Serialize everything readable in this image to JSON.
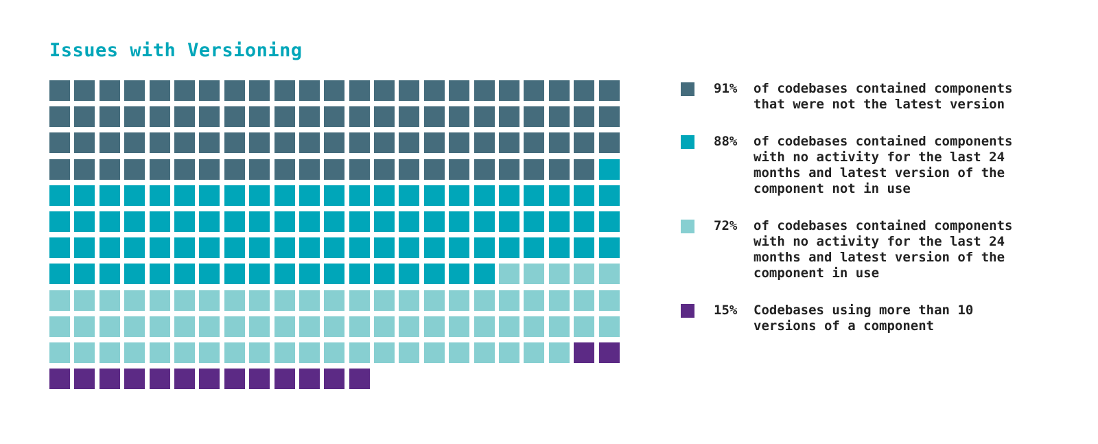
{
  "chart_data": {
    "type": "waffle",
    "title": "Issues with Versioning",
    "columns": 23,
    "cell_counts": [
      91,
      88,
      72,
      15
    ],
    "series": [
      {
        "name": "91%",
        "value": 91,
        "color": "#456c7c",
        "lines": [
          "of codebases contained components",
          "that were not the latest version"
        ]
      },
      {
        "name": "88%",
        "value": 88,
        "color": "#00a6b9",
        "lines": [
          "of codebases contained components",
          "with no activity for the last 24",
          "months and latest version of the",
          "component not in use"
        ]
      },
      {
        "name": "72%",
        "value": 72,
        "color": "#87cfd1",
        "lines": [
          "of codebases contained components",
          "with no activity for the last 24",
          "months and latest version of the",
          "component in use"
        ]
      },
      {
        "name": "15%",
        "value": 15,
        "color": "#5c2a85",
        "lines": [
          "Codebases using more than 10",
          "versions of a component"
        ]
      }
    ]
  }
}
